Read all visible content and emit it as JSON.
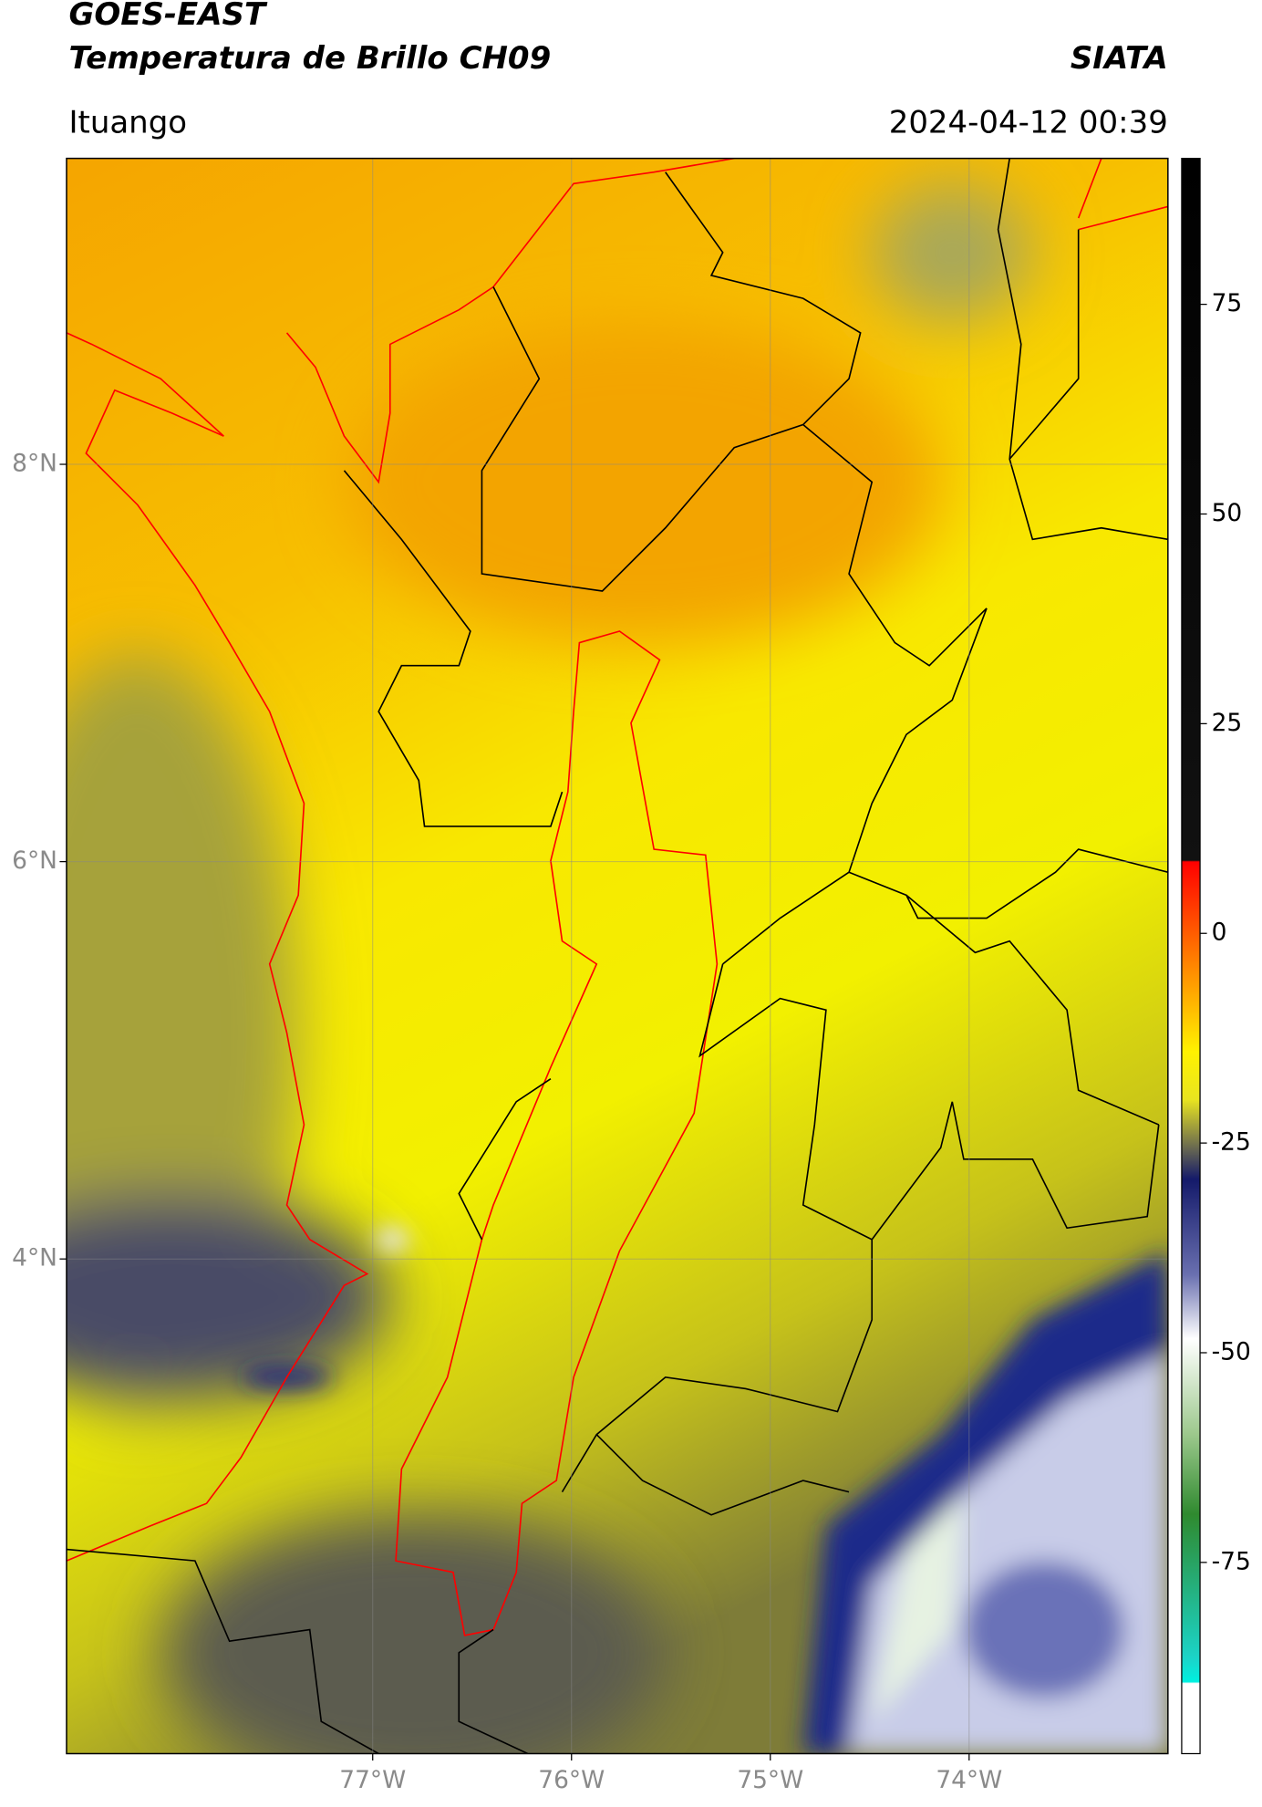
{
  "header": {
    "satellite": "GOES-EAST",
    "product": "Temperatura de Brillo CH09",
    "institution": "SIATA",
    "region": "Ituango",
    "timestamp": "2024-04-12 00:39"
  },
  "map": {
    "lon_range": [
      -78.54,
      -73.0
    ],
    "lat_range": [
      1.51,
      9.54
    ],
    "lon_ticks": [
      {
        "value": -77,
        "label": "77°W"
      },
      {
        "value": -76,
        "label": "76°W"
      },
      {
        "value": -75,
        "label": "75°W"
      },
      {
        "value": -74,
        "label": "74°W"
      }
    ],
    "lat_ticks": [
      {
        "value": 8,
        "label": "8°N"
      },
      {
        "value": 6,
        "label": "6°N"
      },
      {
        "value": 4,
        "label": "4°N"
      }
    ],
    "grid": true
  },
  "colorbar": {
    "range": [
      -97.8,
      92.4
    ],
    "ticks": [
      75,
      50,
      25,
      0,
      -25,
      -50,
      -75
    ]
  }
}
